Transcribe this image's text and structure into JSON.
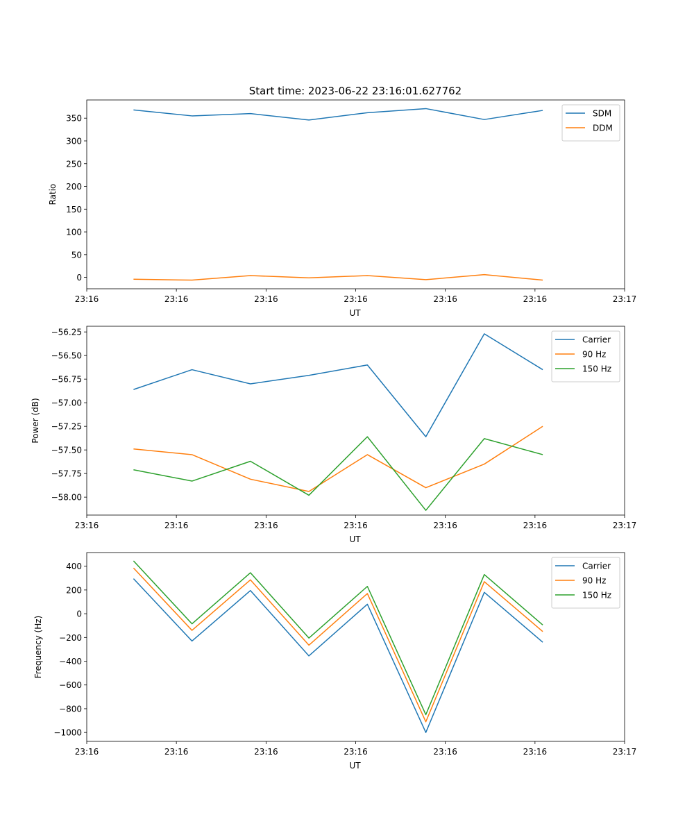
{
  "figure_title": "Start time: 2023-06-22 23:16:01.627762",
  "chart_data": [
    {
      "type": "line",
      "title": "Start time: 2023-06-22 23:16:01.627762",
      "xlabel": "UT",
      "ylabel": "Ratio",
      "x": [
        1,
        2,
        3,
        4,
        5,
        6,
        7,
        8
      ],
      "xlim": [
        0.2,
        9.4
      ],
      "xticks": [
        0.2,
        1.733,
        3.267,
        4.8,
        6.333,
        7.867,
        9.4
      ],
      "xtick_labels": [
        "23:16",
        "23:16",
        "23:16",
        "23:16",
        "23:16",
        "23:16",
        "23:17"
      ],
      "ylim": [
        -25,
        390
      ],
      "yticks": [
        0,
        50,
        100,
        150,
        200,
        250,
        300,
        350
      ],
      "yformat": "int",
      "legend": "top-right",
      "series": [
        {
          "name": "SDM",
          "color": "#1f77b4",
          "values": [
            368,
            355,
            360,
            346,
            362,
            371,
            347,
            367
          ]
        },
        {
          "name": "DDM",
          "color": "#ff7f0e",
          "values": [
            -4,
            -6,
            4,
            -1,
            4,
            -5,
            6,
            -6
          ]
        }
      ]
    },
    {
      "type": "line",
      "title": "",
      "xlabel": "UT",
      "ylabel": "Power (dB)",
      "x": [
        1,
        2,
        3,
        4,
        5,
        6,
        7,
        8
      ],
      "xlim": [
        0.2,
        9.4
      ],
      "xticks": [
        0.2,
        1.733,
        3.267,
        4.8,
        6.333,
        7.867,
        9.4
      ],
      "xtick_labels": [
        "23:16",
        "23:16",
        "23:16",
        "23:16",
        "23:16",
        "23:16",
        "23:17"
      ],
      "ylim": [
        -58.19,
        -56.19
      ],
      "yticks": [
        -58.0,
        -57.75,
        -57.5,
        -57.25,
        -57.0,
        -56.75,
        -56.5,
        -56.25
      ],
      "yformat": "2dp",
      "legend": "top-right",
      "series": [
        {
          "name": "Carrier",
          "color": "#1f77b4",
          "values": [
            -56.86,
            -56.65,
            -56.8,
            -56.71,
            -56.6,
            -57.36,
            -56.27,
            -56.65
          ]
        },
        {
          "name": "90 Hz",
          "color": "#ff7f0e",
          "values": [
            -57.49,
            -57.55,
            -57.81,
            -57.94,
            -57.55,
            -57.9,
            -57.65,
            -57.25
          ]
        },
        {
          "name": "150 Hz",
          "color": "#2ca02c",
          "values": [
            -57.71,
            -57.83,
            -57.62,
            -57.98,
            -57.36,
            -58.14,
            -57.38,
            -57.55
          ]
        }
      ]
    },
    {
      "type": "line",
      "title": "",
      "xlabel": "UT",
      "ylabel": "Frequency (Hz)",
      "x": [
        1,
        2,
        3,
        4,
        5,
        6,
        7,
        8
      ],
      "xlim": [
        0.2,
        9.4
      ],
      "xticks": [
        0.2,
        1.733,
        3.267,
        4.8,
        6.333,
        7.867,
        9.4
      ],
      "xtick_labels": [
        "23:16",
        "23:16",
        "23:16",
        "23:16",
        "23:16",
        "23:16",
        "23:17"
      ],
      "ylim": [
        -1075,
        515
      ],
      "yticks": [
        -1000,
        -800,
        -600,
        -400,
        -200,
        0,
        200,
        400
      ],
      "yformat": "minus",
      "legend": "top-right",
      "series": [
        {
          "name": "Carrier",
          "color": "#1f77b4",
          "values": [
            295,
            -230,
            195,
            -355,
            80,
            -1000,
            180,
            -240
          ]
        },
        {
          "name": "90 Hz",
          "color": "#ff7f0e",
          "values": [
            385,
            -140,
            285,
            -265,
            170,
            -910,
            270,
            -150
          ]
        },
        {
          "name": "150 Hz",
          "color": "#2ca02c",
          "values": [
            445,
            -85,
            345,
            -205,
            230,
            -850,
            330,
            -95
          ]
        }
      ]
    }
  ]
}
